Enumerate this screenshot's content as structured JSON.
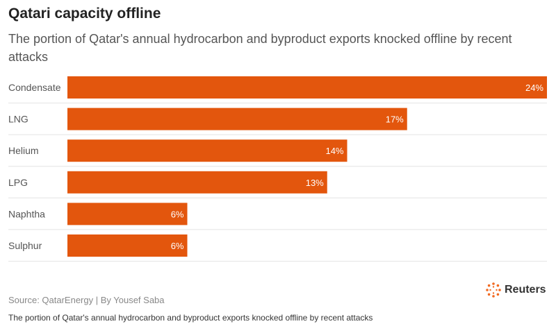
{
  "header": {
    "title": "Qatari capacity offline",
    "subtitle": "The portion of Qatar's annual hydrocarbon and byproduct exports knocked offline by recent attacks"
  },
  "chart_data": {
    "type": "bar",
    "orientation": "horizontal",
    "title": "Qatari capacity offline",
    "subtitle": "The portion of Qatar's annual hydrocarbon and byproduct exports knocked offline by recent attacks",
    "categories": [
      "Condensate",
      "LNG",
      "Helium",
      "LPG",
      "Naphtha",
      "Sulphur"
    ],
    "values": [
      24,
      17,
      14,
      13,
      6,
      6
    ],
    "value_labels": [
      "24%",
      "17%",
      "14%",
      "13%",
      "6%",
      "6%"
    ],
    "unit": "%",
    "xlim": [
      0,
      24
    ],
    "xlabel": "",
    "ylabel": "",
    "bar_color": "#e3560d"
  },
  "footer": {
    "source": "Source: QatarEnergy | By Yousef Saba",
    "caption": "The portion of Qatar's annual hydrocarbon and byproduct exports knocked offline by recent attacks",
    "logo_text": "Reuters"
  }
}
